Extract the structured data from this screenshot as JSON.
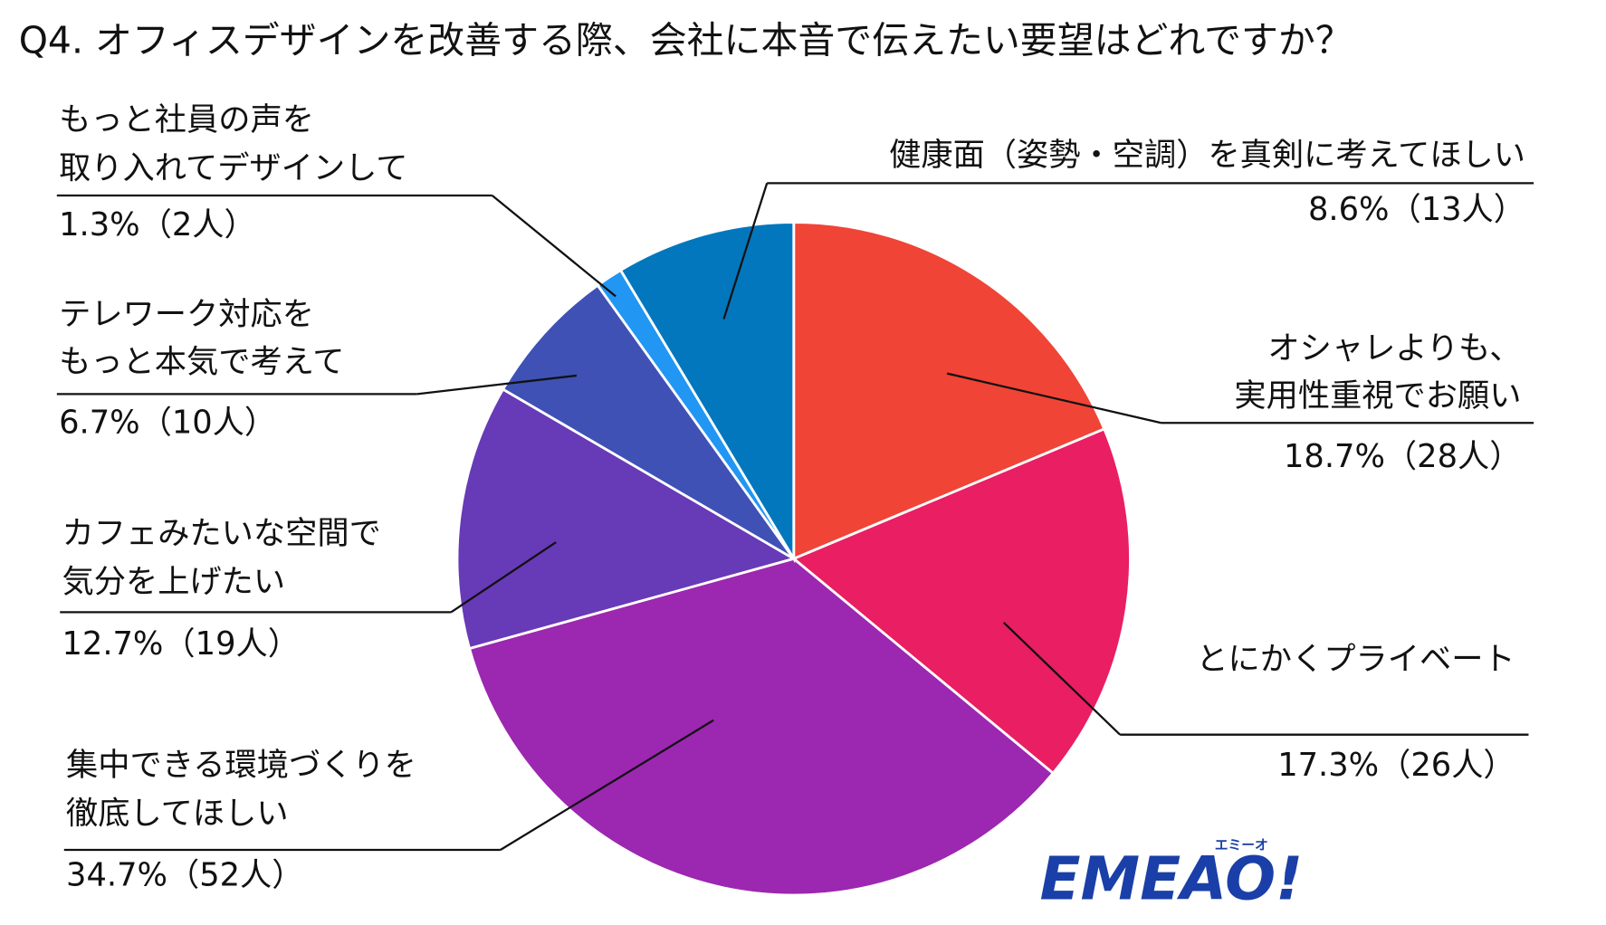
{
  "chart_data": {
    "type": "pie",
    "title": "Q4. オフィスデザインを改善する際、会社に本音で伝えたい要望はどれですか？",
    "categories": [
      [
        "オシャレよりも、",
        "実用性重視でお願い"
      ],
      [
        "とにかくプライベート"
      ],
      [
        "集中できる環境づくりを",
        "徹底してほしい"
      ],
      [
        "カフェみたいな空間で",
        "気分を上げたい"
      ],
      [
        "テレワーク対応を",
        "もっと本気で考えて"
      ],
      [
        "もっと社員の声を",
        "取り入れてデザインして"
      ],
      [
        "健康面（姿勢・空調）を真剣に考えてほしい"
      ]
    ],
    "values": [
      18.7,
      17.3,
      34.7,
      12.7,
      6.7,
      1.3,
      8.6
    ],
    "value_labels": [
      "18.7%（28人）",
      "17.3%（26人）",
      "34.7%（52人）",
      "12.7%（19人）",
      "6.7%（10人）",
      "1.3%（2人）",
      "8.6%（13人）"
    ],
    "colors": [
      "#f04436",
      "#e91e63",
      "#9c27b0",
      "#673ab7",
      "#3f51b5",
      "#2196f3",
      "#0277bd"
    ]
  },
  "logo": {
    "text": "EMEAO!",
    "kana": "エミーオ"
  }
}
